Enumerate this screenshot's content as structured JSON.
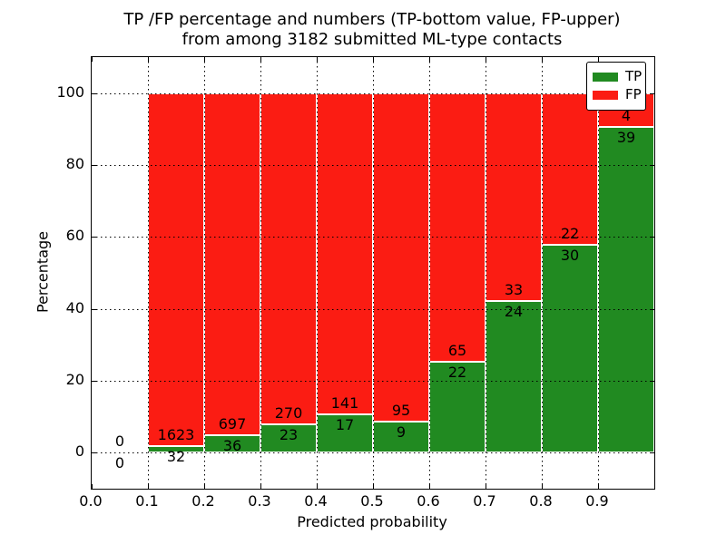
{
  "figure": {
    "title_line1": "TP /FP percentage and numbers (TP-bottom value, FP-upper)",
    "title_line2": "from among 3182 submitted ML-type contacts",
    "xlabel": "Predicted probability",
    "ylabel": "Percentage"
  },
  "legend": {
    "position": "upper right",
    "entries": [
      {
        "label": "TP",
        "color": "#218a21"
      },
      {
        "label": "FP",
        "color": "#fb1c13"
      }
    ]
  },
  "colors": {
    "tp_bar": "#218a21",
    "fp_bar": "#fb1c13",
    "bar_edge": "#ffffff",
    "grid": "#000000",
    "axis": "#000000",
    "background": "#ffffff"
  },
  "chart_data": {
    "type": "bar",
    "stacked": true,
    "normalized_per_bin_to_100_percent": true,
    "title": "TP /FP percentage and numbers (TP-bottom value, FP-upper) from among 3182 submitted ML-type contacts",
    "xlabel": "Predicted probability",
    "ylabel": "Percentage",
    "xlim": [
      0.0,
      1.0
    ],
    "ylim": [
      -10,
      110
    ],
    "xticks": [
      "0.0",
      "0.1",
      "0.2",
      "0.3",
      "0.4",
      "0.5",
      "0.6",
      "0.7",
      "0.8",
      "0.9"
    ],
    "yticks": [
      0,
      20,
      40,
      60,
      80,
      100
    ],
    "grid": true,
    "legend_position": "upper right",
    "total_contacts": 3182,
    "bin_width": 0.1,
    "series": [
      {
        "name": "TP",
        "color": "#218a21"
      },
      {
        "name": "FP",
        "color": "#fb1c13"
      }
    ],
    "bins": [
      {
        "range": [
          0.0,
          0.1
        ],
        "tp": 0,
        "fp": 0
      },
      {
        "range": [
          0.1,
          0.2
        ],
        "tp": 32,
        "fp": 1623
      },
      {
        "range": [
          0.2,
          0.3
        ],
        "tp": 36,
        "fp": 697
      },
      {
        "range": [
          0.3,
          0.4
        ],
        "tp": 23,
        "fp": 270
      },
      {
        "range": [
          0.4,
          0.5
        ],
        "tp": 17,
        "fp": 141
      },
      {
        "range": [
          0.5,
          0.6
        ],
        "tp": 9,
        "fp": 95
      },
      {
        "range": [
          0.6,
          0.7
        ],
        "tp": 22,
        "fp": 65
      },
      {
        "range": [
          0.7,
          0.8
        ],
        "tp": 24,
        "fp": 33
      },
      {
        "range": [
          0.8,
          0.9
        ],
        "tp": 30,
        "fp": 22
      },
      {
        "range": [
          0.9,
          1.0
        ],
        "tp": 39,
        "fp": 4
      }
    ]
  }
}
